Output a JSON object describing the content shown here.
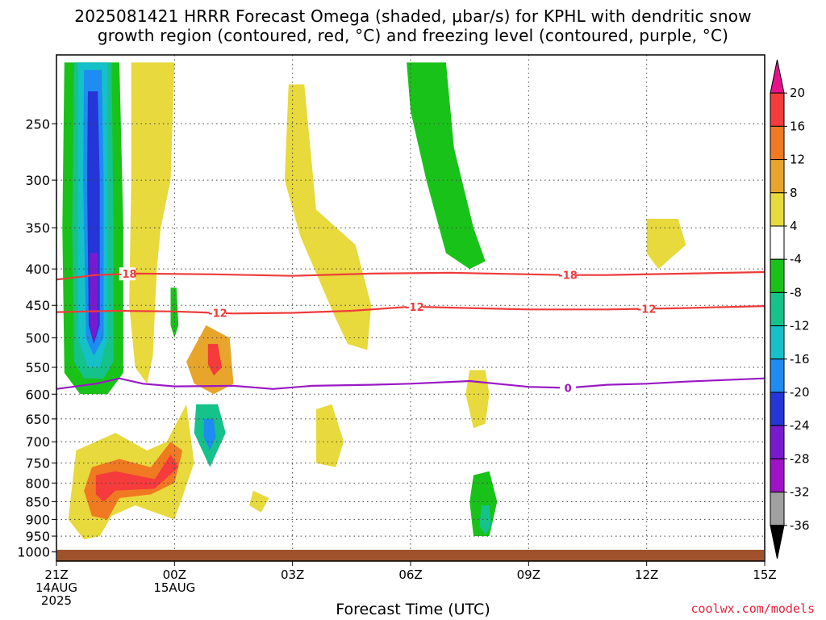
{
  "chart_data": {
    "type": "heatmap",
    "title_line1": "2025081421 HRRR Forecast Omega (shaded, μbar/s) for KPHL with dendritic snow",
    "title_line2": "growth region (contoured, red, °C) and freezing level (contoured, purple, °C)",
    "xlabel": "Forecast Time (UTC)",
    "credit": "coolwx.com/models",
    "x_ticks": [
      {
        "hour": 0,
        "label": "21Z",
        "sub1": "14AUG",
        "sub2": "2025"
      },
      {
        "hour": 3,
        "label": "00Z",
        "sub1": "15AUG",
        "sub2": ""
      },
      {
        "hour": 6,
        "label": "03Z",
        "sub1": "",
        "sub2": ""
      },
      {
        "hour": 9,
        "label": "06Z",
        "sub1": "",
        "sub2": ""
      },
      {
        "hour": 12,
        "label": "09Z",
        "sub1": "",
        "sub2": ""
      },
      {
        "hour": 15,
        "label": "12Z",
        "sub1": "",
        "sub2": ""
      },
      {
        "hour": 18,
        "label": "15Z",
        "sub1": "",
        "sub2": ""
      }
    ],
    "xlim": [
      0,
      18
    ],
    "y_ticks": [
      250,
      300,
      350,
      400,
      450,
      500,
      550,
      600,
      650,
      700,
      750,
      800,
      850,
      900,
      950,
      1000
    ],
    "ylim_hpa": [
      200,
      1030
    ],
    "y_scale": "log",
    "colorbar": {
      "ticks": [
        "20",
        "16",
        "12",
        "8",
        "4",
        "-4",
        "-8",
        "-12",
        "-16",
        "-20",
        "-24",
        "-28",
        "-32",
        "-36"
      ],
      "bins": [
        {
          "color": "#e8138c"
        },
        {
          "color": "#f53b3b"
        },
        {
          "color": "#f07a22"
        },
        {
          "color": "#e8a52c"
        },
        {
          "color": "#e8d93c"
        },
        {
          "color": "#ffffff"
        },
        {
          "color": "#19c219"
        },
        {
          "color": "#14c28a"
        },
        {
          "color": "#15c0c8"
        },
        {
          "color": "#1e8cf0"
        },
        {
          "color": "#2436d8"
        },
        {
          "color": "#7a1ad0"
        },
        {
          "color": "#a012c8"
        },
        {
          "color": "#a0a0a0"
        },
        {
          "color": "#000000"
        }
      ]
    },
    "contours": [
      {
        "name": "-18",
        "color": "#ee3b3b",
        "label_positions_hour": [
          1.8,
          13.0
        ],
        "points": [
          [
            0,
            414
          ],
          [
            1.0,
            408
          ],
          [
            2.0,
            406
          ],
          [
            4,
            407
          ],
          [
            6,
            409
          ],
          [
            8,
            406
          ],
          [
            10,
            405
          ],
          [
            12,
            407
          ],
          [
            13,
            408
          ],
          [
            14,
            408
          ],
          [
            16,
            406
          ],
          [
            18,
            404
          ]
        ]
      },
      {
        "name": "-12",
        "color": "#ee3b3b",
        "label_positions_hour": [
          4.1,
          9.1,
          15.0
        ],
        "points": [
          [
            0,
            460
          ],
          [
            1.5,
            458
          ],
          [
            3,
            459
          ],
          [
            4.5,
            462
          ],
          [
            6,
            461
          ],
          [
            7.5,
            458
          ],
          [
            9,
            452
          ],
          [
            10.5,
            454
          ],
          [
            12,
            456
          ],
          [
            14,
            456
          ],
          [
            16,
            454
          ],
          [
            18,
            451
          ]
        ]
      },
      {
        "name": "0",
        "color": "#9a18c4",
        "label_positions_hour": [
          13.0
        ],
        "points": [
          [
            0,
            590
          ],
          [
            1.0,
            580
          ],
          [
            1.6,
            570
          ],
          [
            2.2,
            580
          ],
          [
            3,
            585
          ],
          [
            4.5,
            584
          ],
          [
            5.5,
            590
          ],
          [
            6.5,
            584
          ],
          [
            8,
            582
          ],
          [
            9,
            580
          ],
          [
            10.5,
            575
          ],
          [
            12,
            586
          ],
          [
            13,
            588
          ],
          [
            14,
            582
          ],
          [
            15,
            580
          ],
          [
            16,
            576
          ],
          [
            17,
            573
          ],
          [
            18,
            570
          ]
        ]
      }
    ],
    "shaded_regions": [
      {
        "value_bin": "-4 to -8",
        "polygon": [
          [
            0.2,
            205
          ],
          [
            1.6,
            205
          ],
          [
            1.7,
            350
          ],
          [
            1.7,
            560
          ],
          [
            1.3,
            600
          ],
          [
            0.6,
            600
          ],
          [
            0.2,
            560
          ],
          [
            0.15,
            350
          ]
        ]
      },
      {
        "value_bin": "-8 to -12",
        "polygon": [
          [
            0.45,
            205
          ],
          [
            1.4,
            205
          ],
          [
            1.45,
            350
          ],
          [
            1.45,
            540
          ],
          [
            1.2,
            570
          ],
          [
            0.7,
            570
          ],
          [
            0.45,
            540
          ],
          [
            0.4,
            350
          ]
        ]
      },
      {
        "value_bin": "-12 to -16",
        "polygon": [
          [
            0.55,
            205
          ],
          [
            1.3,
            205
          ],
          [
            1.3,
            350
          ],
          [
            1.3,
            500
          ],
          [
            1.1,
            550
          ],
          [
            0.8,
            550
          ],
          [
            0.55,
            500
          ],
          [
            0.55,
            350
          ]
        ]
      },
      {
        "value_bin": "-16 to -20",
        "polygon": [
          [
            0.7,
            210
          ],
          [
            1.15,
            210
          ],
          [
            1.2,
            300
          ],
          [
            1.2,
            500
          ],
          [
            0.95,
            530
          ],
          [
            0.75,
            500
          ],
          [
            0.68,
            300
          ]
        ]
      },
      {
        "value_bin": "-20 to -24",
        "polygon": [
          [
            0.8,
            225
          ],
          [
            1.05,
            225
          ],
          [
            1.1,
            300
          ],
          [
            1.1,
            480
          ],
          [
            0.95,
            510
          ],
          [
            0.82,
            480
          ],
          [
            0.78,
            300
          ]
        ]
      },
      {
        "value_bin": "-24 to -28",
        "polygon": [
          [
            0.85,
            380
          ],
          [
            1.05,
            380
          ],
          [
            1.05,
            480
          ],
          [
            0.95,
            510
          ],
          [
            0.86,
            480
          ]
        ]
      },
      {
        "value_bin": "4 to 8 (east of column)",
        "polygon": [
          [
            1.9,
            205
          ],
          [
            3.0,
            205
          ],
          [
            2.9,
            300
          ],
          [
            2.65,
            350
          ],
          [
            2.55,
            400
          ],
          [
            2.45,
            530
          ],
          [
            2.3,
            580
          ],
          [
            2.0,
            550
          ],
          [
            1.85,
            450
          ],
          [
            1.9,
            300
          ]
        ]
      },
      {
        "value_bin": "4 to 8 (03Z plume)",
        "polygon": [
          [
            5.9,
            220
          ],
          [
            6.3,
            220
          ],
          [
            6.6,
            330
          ],
          [
            7.6,
            370
          ],
          [
            8.0,
            450
          ],
          [
            7.9,
            520
          ],
          [
            7.4,
            510
          ],
          [
            7.1,
            470
          ],
          [
            6.2,
            360
          ],
          [
            5.8,
            300
          ]
        ]
      },
      {
        "value_bin": "-4 to -8 (06Z band)",
        "polygon": [
          [
            8.9,
            205
          ],
          [
            9.9,
            205
          ],
          [
            10.1,
            270
          ],
          [
            10.6,
            350
          ],
          [
            10.9,
            390
          ],
          [
            10.5,
            400
          ],
          [
            9.9,
            380
          ],
          [
            9.4,
            300
          ],
          [
            9.0,
            240
          ]
        ]
      },
      {
        "value_bin": "4 to 8 (lower-left)",
        "polygon": [
          [
            0.5,
            720
          ],
          [
            1.5,
            680
          ],
          [
            2.3,
            720
          ],
          [
            2.8,
            700
          ],
          [
            3.3,
            620
          ],
          [
            3.5,
            750
          ],
          [
            3.0,
            900
          ],
          [
            2.5,
            880
          ],
          [
            2.0,
            860
          ],
          [
            1.4,
            890
          ],
          [
            1.1,
            950
          ],
          [
            0.7,
            960
          ],
          [
            0.3,
            900
          ]
        ]
      },
      {
        "value_bin": "4 to 8 (midright)",
        "polygon": [
          [
            6.6,
            630
          ],
          [
            7.0,
            620
          ],
          [
            7.3,
            700
          ],
          [
            7.1,
            760
          ],
          [
            6.6,
            750
          ]
        ]
      },
      {
        "value_bin": "4 to 8 (12Z)",
        "polygon": [
          [
            15.0,
            340
          ],
          [
            15.8,
            340
          ],
          [
            16.0,
            370
          ],
          [
            15.3,
            400
          ],
          [
            15.0,
            380
          ]
        ]
      },
      {
        "value_bin": "4 to 8 (07Z)",
        "polygon": [
          [
            10.5,
            555
          ],
          [
            10.9,
            555
          ],
          [
            11.0,
            600
          ],
          [
            10.9,
            660
          ],
          [
            10.6,
            670
          ],
          [
            10.4,
            600
          ]
        ]
      },
      {
        "value_bin": "4 to 8 (02Z)",
        "polygon": [
          [
            5.0,
            820
          ],
          [
            5.4,
            840
          ],
          [
            5.2,
            880
          ],
          [
            4.9,
            860
          ]
        ]
      },
      {
        "value_bin": "-4 to -8 (07Z low)",
        "polygon": [
          [
            10.6,
            780
          ],
          [
            11.0,
            770
          ],
          [
            11.2,
            850
          ],
          [
            11.0,
            950
          ],
          [
            10.6,
            950
          ],
          [
            10.5,
            850
          ]
        ]
      },
      {
        "value_bin": "-8 to -12 (07Z low)",
        "polygon": [
          [
            10.8,
            860
          ],
          [
            11.0,
            860
          ],
          [
            11.05,
            920
          ],
          [
            10.9,
            945
          ],
          [
            10.75,
            920
          ]
        ]
      },
      {
        "value_bin": "-4 to -8 (small 00Z)",
        "polygon": [
          [
            2.9,
            425
          ],
          [
            3.05,
            425
          ],
          [
            3.1,
            480
          ],
          [
            3.0,
            500
          ],
          [
            2.9,
            480
          ]
        ]
      },
      {
        "value_bin": "-4 to -12 (01Z)",
        "polygon": [
          [
            3.55,
            620
          ],
          [
            4.1,
            620
          ],
          [
            4.3,
            680
          ],
          [
            3.9,
            760
          ],
          [
            3.5,
            680
          ]
        ]
      },
      {
        "value_bin": "-12 to -20 (01Z core)",
        "polygon": [
          [
            3.75,
            650
          ],
          [
            4.0,
            650
          ],
          [
            4.05,
            690
          ],
          [
            3.9,
            720
          ],
          [
            3.75,
            690
          ]
        ]
      },
      {
        "value_bin": "4 to 12 (01Z upper)",
        "polygon": [
          [
            3.3,
            540
          ],
          [
            3.8,
            480
          ],
          [
            4.4,
            500
          ],
          [
            4.5,
            580
          ],
          [
            4.0,
            600
          ],
          [
            3.5,
            580
          ]
        ]
      },
      {
        "value_bin": "12 to 20 (01Z core)",
        "polygon": [
          [
            3.85,
            510
          ],
          [
            4.1,
            510
          ],
          [
            4.2,
            550
          ],
          [
            4.0,
            565
          ],
          [
            3.85,
            545
          ]
        ]
      },
      {
        "value_bin": "8 to 16 (lower core)",
        "polygon": [
          [
            0.9,
            760
          ],
          [
            1.6,
            740
          ],
          [
            2.4,
            760
          ],
          [
            2.9,
            700
          ],
          [
            3.2,
            720
          ],
          [
            3.0,
            800
          ],
          [
            2.4,
            830
          ],
          [
            1.6,
            840
          ],
          [
            1.3,
            900
          ],
          [
            0.9,
            890
          ],
          [
            0.7,
            820
          ]
        ]
      },
      {
        "value_bin": "16 to 20 (lower core)",
        "polygon": [
          [
            1.0,
            780
          ],
          [
            1.5,
            770
          ],
          [
            2.5,
            790
          ],
          [
            2.9,
            730
          ],
          [
            3.1,
            760
          ],
          [
            2.5,
            815
          ],
          [
            1.5,
            820
          ],
          [
            1.2,
            850
          ],
          [
            1.0,
            830
          ]
        ]
      }
    ],
    "ground_color": "#a0522d"
  }
}
